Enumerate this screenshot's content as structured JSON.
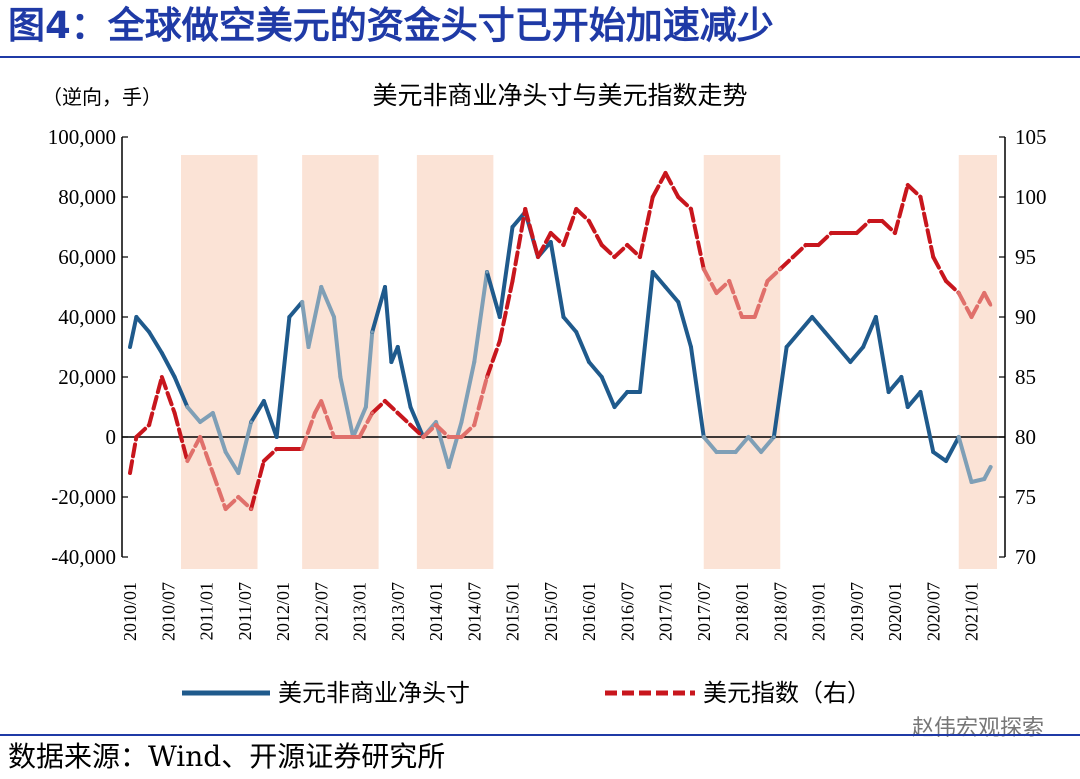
{
  "figure": {
    "title": "图4：全球做空美元的资金头寸已开始加速减少",
    "source": "数据来源：Wind、开源证券研究所",
    "watermark": "赵伟宏观探索"
  },
  "chart_data": {
    "type": "line",
    "title": "美元非商业净头寸与美元指数走势",
    "left_axis_unit": "（逆向，手）",
    "y_left": {
      "min": -40000,
      "max": 100000,
      "ticks": [
        "-40,000",
        "-20,000",
        "0",
        "20,000",
        "40,000",
        "60,000",
        "80,000",
        "100,000"
      ]
    },
    "y_right": {
      "min": 70,
      "max": 105,
      "ticks": [
        "70",
        "75",
        "80",
        "85",
        "90",
        "95",
        "100",
        "105"
      ]
    },
    "x_ticks": [
      "2010/01",
      "2010/07",
      "2011/01",
      "2011/07",
      "2012/01",
      "2012/07",
      "2013/01",
      "2013/07",
      "2014/01",
      "2014/07",
      "2015/01",
      "2015/07",
      "2016/01",
      "2016/07",
      "2017/01",
      "2017/07",
      "2018/01",
      "2018/07",
      "2019/01",
      "2019/07",
      "2020/01",
      "2020/07",
      "2021/01"
    ],
    "shaded_periods": [
      [
        "2010/09",
        "2011/09"
      ],
      [
        "2012/04",
        "2013/04"
      ],
      [
        "2013/10",
        "2014/10"
      ],
      [
        "2017/07",
        "2018/07"
      ],
      [
        "2020/11",
        "2021/05"
      ]
    ],
    "colors": {
      "position": "#1f5a8c",
      "position_shaded": "#7f9fb6",
      "index": "#c8161d",
      "index_shaded": "#e0706b",
      "shade": "#fbe3d6"
    },
    "series": [
      {
        "name": "美元非商业净头寸",
        "axis": "left",
        "style": "solid",
        "points": [
          [
            "2010/01",
            30000
          ],
          [
            "2010/02",
            40000
          ],
          [
            "2010/04",
            35000
          ],
          [
            "2010/06",
            28000
          ],
          [
            "2010/08",
            20000
          ],
          [
            "2010/10",
            10000
          ],
          [
            "2010/12",
            5000
          ],
          [
            "2011/02",
            8000
          ],
          [
            "2011/04",
            -5000
          ],
          [
            "2011/06",
            -12000
          ],
          [
            "2011/08",
            5000
          ],
          [
            "2011/10",
            12000
          ],
          [
            "2011/12",
            0
          ],
          [
            "2012/02",
            40000
          ],
          [
            "2012/04",
            45000
          ],
          [
            "2012/05",
            30000
          ],
          [
            "2012/07",
            50000
          ],
          [
            "2012/09",
            40000
          ],
          [
            "2012/10",
            20000
          ],
          [
            "2012/12",
            0
          ],
          [
            "2013/02",
            10000
          ],
          [
            "2013/03",
            35000
          ],
          [
            "2013/05",
            50000
          ],
          [
            "2013/06",
            25000
          ],
          [
            "2013/07",
            30000
          ],
          [
            "2013/09",
            10000
          ],
          [
            "2013/11",
            0
          ],
          [
            "2014/01",
            5000
          ],
          [
            "2014/03",
            -10000
          ],
          [
            "2014/05",
            5000
          ],
          [
            "2014/07",
            25000
          ],
          [
            "2014/09",
            55000
          ],
          [
            "2014/11",
            40000
          ],
          [
            "2015/01",
            70000
          ],
          [
            "2015/03",
            75000
          ],
          [
            "2015/05",
            60000
          ],
          [
            "2015/07",
            65000
          ],
          [
            "2015/09",
            40000
          ],
          [
            "2015/11",
            35000
          ],
          [
            "2016/01",
            25000
          ],
          [
            "2016/03",
            20000
          ],
          [
            "2016/05",
            10000
          ],
          [
            "2016/07",
            15000
          ],
          [
            "2016/09",
            15000
          ],
          [
            "2016/11",
            55000
          ],
          [
            "2017/01",
            50000
          ],
          [
            "2017/03",
            45000
          ],
          [
            "2017/05",
            30000
          ],
          [
            "2017/07",
            0
          ],
          [
            "2017/09",
            -5000
          ],
          [
            "2017/12",
            -5000
          ],
          [
            "2018/02",
            0
          ],
          [
            "2018/04",
            -5000
          ],
          [
            "2018/06",
            0
          ],
          [
            "2018/08",
            30000
          ],
          [
            "2018/10",
            35000
          ],
          [
            "2018/12",
            40000
          ],
          [
            "2019/02",
            35000
          ],
          [
            "2019/04",
            30000
          ],
          [
            "2019/06",
            25000
          ],
          [
            "2019/08",
            30000
          ],
          [
            "2019/10",
            40000
          ],
          [
            "2019/12",
            15000
          ],
          [
            "2020/02",
            20000
          ],
          [
            "2020/03",
            10000
          ],
          [
            "2020/05",
            15000
          ],
          [
            "2020/07",
            -5000
          ],
          [
            "2020/09",
            -8000
          ],
          [
            "2020/11",
            0
          ],
          [
            "2021/01",
            -15000
          ],
          [
            "2021/03",
            -14000
          ],
          [
            "2021/04",
            -10000
          ]
        ]
      },
      {
        "name": "美元指数（右）",
        "axis": "right",
        "style": "dashed",
        "points": [
          [
            "2010/01",
            77
          ],
          [
            "2010/02",
            80
          ],
          [
            "2010/04",
            81
          ],
          [
            "2010/06",
            85
          ],
          [
            "2010/08",
            82
          ],
          [
            "2010/10",
            78
          ],
          [
            "2010/12",
            80
          ],
          [
            "2011/02",
            77
          ],
          [
            "2011/04",
            74
          ],
          [
            "2011/06",
            75
          ],
          [
            "2011/08",
            74
          ],
          [
            "2011/10",
            78
          ],
          [
            "2011/12",
            79
          ],
          [
            "2012/02",
            79
          ],
          [
            "2012/04",
            79
          ],
          [
            "2012/06",
            82
          ],
          [
            "2012/07",
            83
          ],
          [
            "2012/09",
            80
          ],
          [
            "2012/11",
            80
          ],
          [
            "2013/01",
            80
          ],
          [
            "2013/03",
            82
          ],
          [
            "2013/05",
            83
          ],
          [
            "2013/07",
            82
          ],
          [
            "2013/09",
            81
          ],
          [
            "2013/11",
            80
          ],
          [
            "2014/01",
            81
          ],
          [
            "2014/03",
            80
          ],
          [
            "2014/05",
            80
          ],
          [
            "2014/07",
            81
          ],
          [
            "2014/09",
            85
          ],
          [
            "2014/11",
            88
          ],
          [
            "2015/01",
            93
          ],
          [
            "2015/03",
            99
          ],
          [
            "2015/05",
            95
          ],
          [
            "2015/07",
            97
          ],
          [
            "2015/09",
            96
          ],
          [
            "2015/11",
            99
          ],
          [
            "2016/01",
            98
          ],
          [
            "2016/03",
            96
          ],
          [
            "2016/05",
            95
          ],
          [
            "2016/07",
            96
          ],
          [
            "2016/09",
            95
          ],
          [
            "2016/11",
            100
          ],
          [
            "2017/01",
            102
          ],
          [
            "2017/03",
            100
          ],
          [
            "2017/05",
            99
          ],
          [
            "2017/07",
            94
          ],
          [
            "2017/09",
            92
          ],
          [
            "2017/11",
            93
          ],
          [
            "2018/01",
            90
          ],
          [
            "2018/03",
            90
          ],
          [
            "2018/05",
            93
          ],
          [
            "2018/07",
            94
          ],
          [
            "2018/09",
            95
          ],
          [
            "2018/11",
            96
          ],
          [
            "2019/01",
            96
          ],
          [
            "2019/03",
            97
          ],
          [
            "2019/05",
            97
          ],
          [
            "2019/07",
            97
          ],
          [
            "2019/09",
            98
          ],
          [
            "2019/11",
            98
          ],
          [
            "2020/01",
            97
          ],
          [
            "2020/03",
            101
          ],
          [
            "2020/05",
            100
          ],
          [
            "2020/07",
            95
          ],
          [
            "2020/09",
            93
          ],
          [
            "2020/11",
            92
          ],
          [
            "2021/01",
            90
          ],
          [
            "2021/03",
            92
          ],
          [
            "2021/04",
            91
          ]
        ]
      }
    ]
  }
}
